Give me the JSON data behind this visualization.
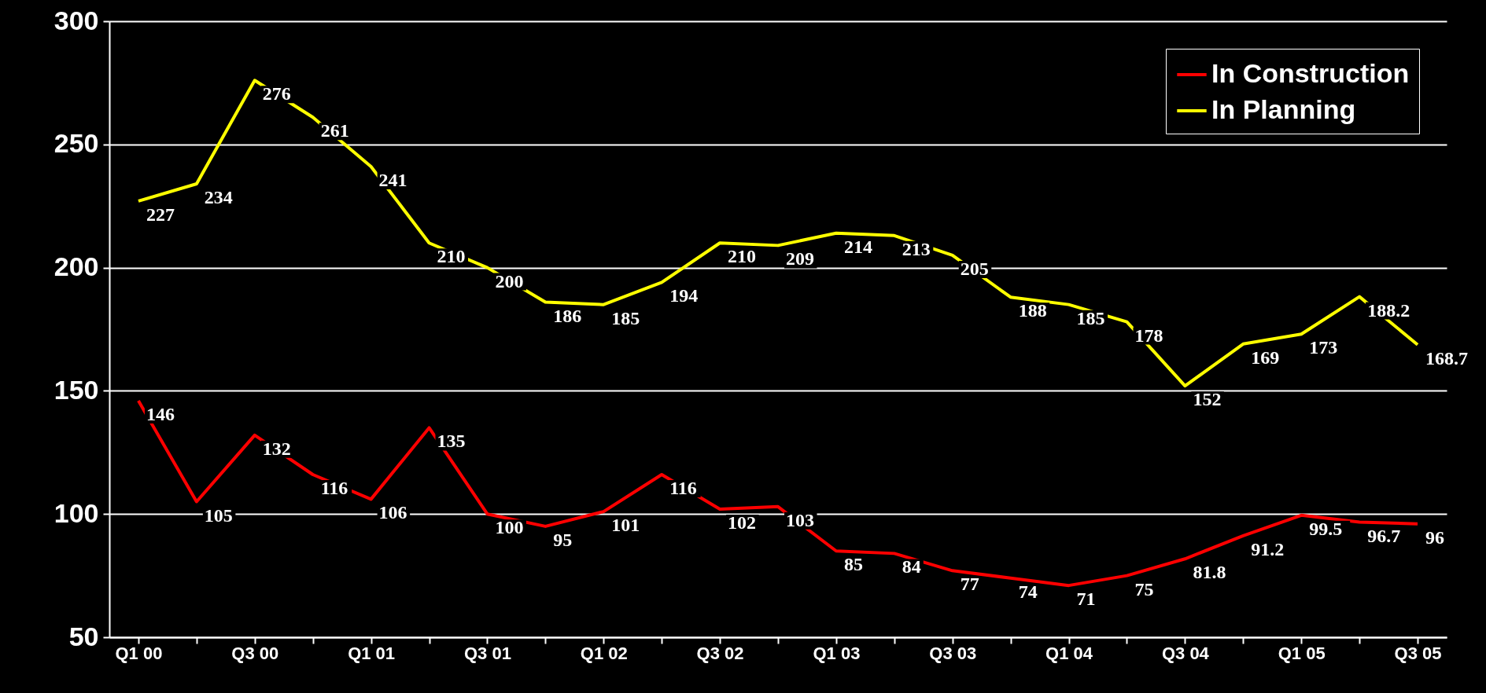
{
  "chart_data": {
    "type": "line",
    "categories": [
      "Q1 00",
      null,
      "Q3 00",
      null,
      "Q1 01",
      null,
      "Q3 01",
      null,
      "Q1 02",
      null,
      "Q3 02",
      null,
      "Q1 03",
      null,
      "Q3 03",
      null,
      "Q1 04",
      null,
      "Q3 04",
      null,
      "Q1 05",
      null,
      "Q3 05"
    ],
    "series": [
      {
        "name": "In Construction",
        "color": "#ff0000",
        "values": [
          146,
          105,
          132,
          116,
          106,
          135,
          100,
          95,
          101,
          116,
          102,
          103,
          85,
          84,
          77,
          74,
          71,
          75,
          81.8,
          91.2,
          99.5,
          96.7,
          96
        ]
      },
      {
        "name": "In Planning",
        "color": "#ffff00",
        "values": [
          227,
          234,
          276,
          261,
          241,
          210,
          200,
          186,
          185,
          194,
          210,
          209,
          214,
          213,
          205,
          188,
          185,
          178,
          152,
          169,
          173,
          188.2,
          168.7
        ]
      }
    ],
    "ylim": [
      50,
      300
    ],
    "yticks": [
      50,
      100,
      150,
      200,
      250,
      300
    ],
    "grid": "y",
    "legend": "top right",
    "data_labels": true,
    "marker": "none",
    "line_style": "solid"
  }
}
